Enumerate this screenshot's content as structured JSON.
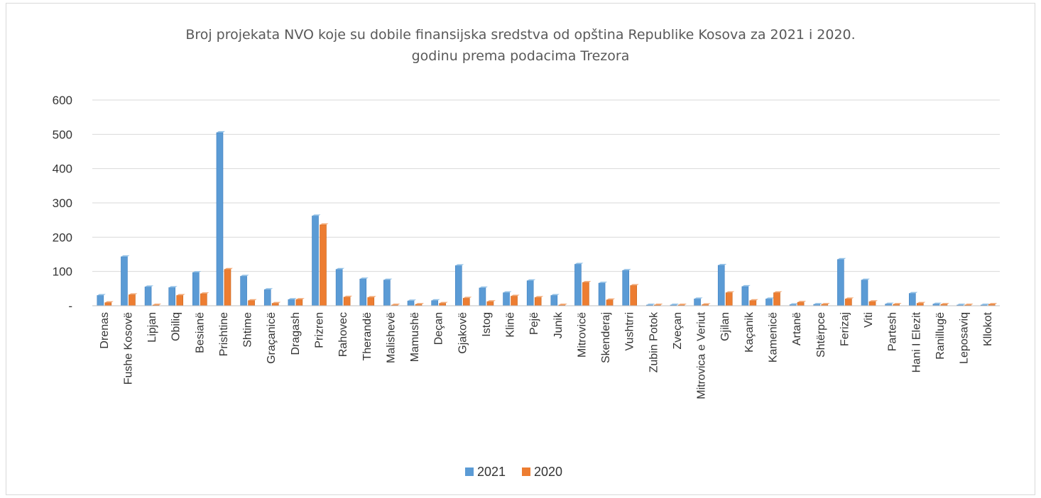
{
  "chart_data": {
    "type": "bar",
    "title_line1": "Broj projekata NVO koje su dobile finansijska sredstva od opština Republike Kosova za 2021 i 2020.",
    "title_line2": "godinu prema podacima Trezora",
    "categories": [
      "Drenas",
      "Fushe Kosovë",
      "Lipjan",
      "Obiliq",
      "Besianë",
      "Prishtine",
      "Shtime",
      "Graçanicë",
      "Dragash",
      "Prizren",
      "Rahovec",
      "Therandë",
      "Malishevë",
      "Mamushë",
      "Deçan",
      "Gjakovë",
      "Istog",
      "Klinë",
      "Pejë",
      "Junik",
      "Mitrovicë",
      "Skenderaj",
      "Vushtrri",
      "Zubin Potok",
      "Zveçan",
      "Mitrovica e Veriut",
      "Gjilan",
      "Kaçanik",
      "Kamenicë",
      "Artanë",
      "Shtërpce",
      "Ferizaj",
      "Viti",
      "Partesh",
      "Hani I Elezit",
      "Ranillugë",
      "Leposaviq",
      "Kllokot"
    ],
    "series": [
      {
        "name": "2021",
        "color": "#5b9bd5",
        "values": [
          30,
          143,
          55,
          53,
          97,
          505,
          86,
          47,
          18,
          262,
          106,
          78,
          75,
          14,
          15,
          117,
          52,
          38,
          73,
          30,
          121,
          66,
          103,
          2,
          2,
          20,
          118,
          56,
          20,
          3,
          4,
          135,
          75,
          5,
          36,
          5,
          1,
          2
        ]
      },
      {
        "name": "2020",
        "color": "#ed7d31",
        "values": [
          9,
          32,
          0,
          30,
          35,
          106,
          15,
          7,
          18,
          236,
          25,
          24,
          0,
          4,
          7,
          22,
          12,
          28,
          24,
          2,
          68,
          17,
          59,
          1,
          1,
          3,
          38,
          15,
          38,
          10,
          4,
          20,
          12,
          4,
          7,
          4,
          0,
          4
        ]
      }
    ],
    "yticks": [
      "-",
      "100",
      "200",
      "300",
      "400",
      "500",
      "600"
    ],
    "ylim": [
      0,
      600
    ],
    "grid": true,
    "legend_position": "bottom"
  }
}
